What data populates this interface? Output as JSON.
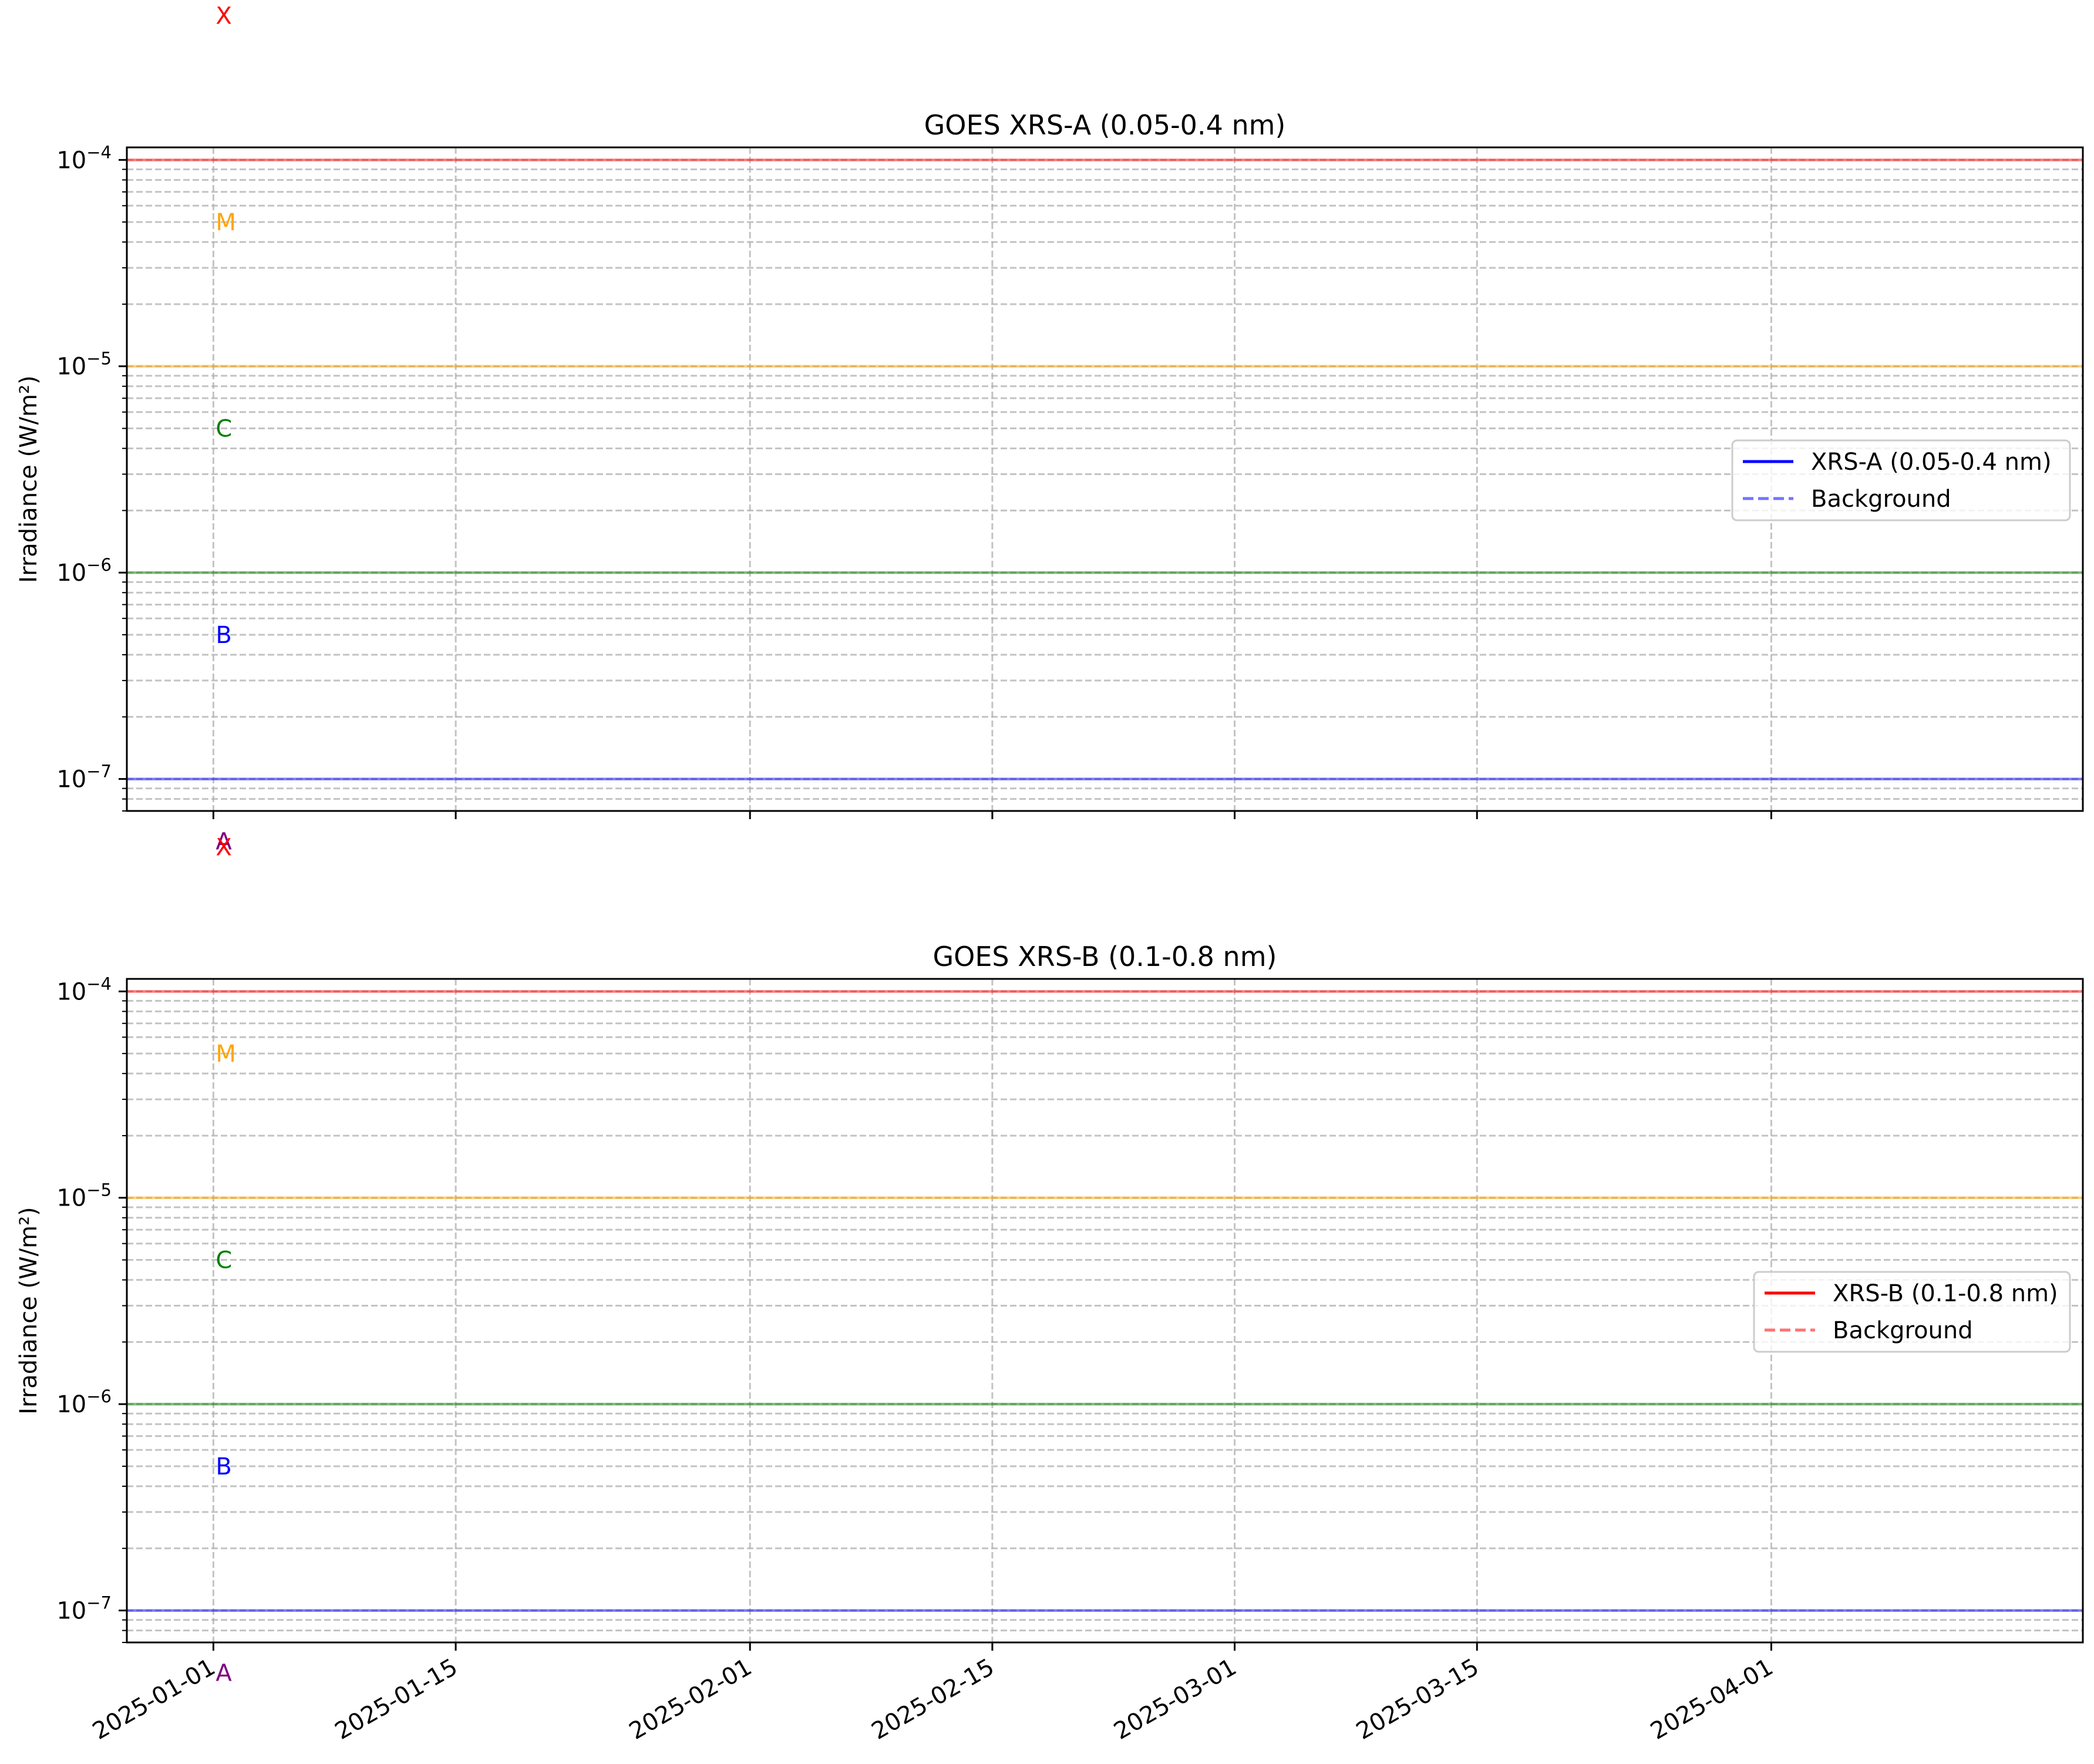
{
  "chart_data": [
    {
      "type": "line",
      "title": "GOES XRS-A (0.05-0.4 nm)",
      "xlabel": "",
      "ylabel": "Irradiance (W/m²)",
      "yscale": "log",
      "ylim": [
        7e-08,
        0.000115
      ],
      "xlim": [
        "2024-12-27",
        "2025-04-19"
      ],
      "grid": true,
      "legend_position": "center-right",
      "yticks": [
        {
          "value": 1e-07,
          "base": "10",
          "exp": "−7"
        },
        {
          "value": 1e-06,
          "base": "10",
          "exp": "−6"
        },
        {
          "value": 1e-05,
          "base": "10",
          "exp": "−5"
        },
        {
          "value": 0.0001,
          "base": "10",
          "exp": "−4"
        }
      ],
      "xticks": [
        "2025-01-01",
        "2025-01-15",
        "2025-02-01",
        "2025-02-15",
        "2025-03-01",
        "2025-03-15",
        "2025-04-01"
      ],
      "series": [
        {
          "name": "XRS-A (0.05-0.4 nm)",
          "color": "#0000ff",
          "style": "solid",
          "values": []
        },
        {
          "name": "Background",
          "color": "#7373ff",
          "style": "dashed",
          "values": []
        }
      ],
      "thresholds": [
        {
          "value": 1e-07,
          "color": "#0000ff"
        },
        {
          "value": 1e-06,
          "color": "#008000"
        },
        {
          "value": 1e-05,
          "color": "#ffa500"
        },
        {
          "value": 0.0001,
          "color": "#ff0000"
        }
      ],
      "class_labels": [
        {
          "text": "X",
          "value": 0.0005,
          "color": "#ff0000"
        },
        {
          "text": "M",
          "value": 5e-05,
          "color": "#ffa500"
        },
        {
          "text": "C",
          "value": 5e-06,
          "color": "#008000"
        },
        {
          "text": "B",
          "value": 5e-07,
          "color": "#0000ff"
        },
        {
          "text": "A",
          "value": 5e-08,
          "color": "#800080"
        }
      ]
    },
    {
      "type": "line",
      "title": "GOES XRS-B (0.1-0.8 nm)",
      "xlabel": "",
      "ylabel": "Irradiance (W/m²)",
      "yscale": "log",
      "ylim": [
        7e-08,
        0.000115
      ],
      "xlim": [
        "2024-12-27",
        "2025-04-19"
      ],
      "grid": true,
      "legend_position": "center-right",
      "yticks": [
        {
          "value": 1e-07,
          "base": "10",
          "exp": "−7"
        },
        {
          "value": 1e-06,
          "base": "10",
          "exp": "−6"
        },
        {
          "value": 1e-05,
          "base": "10",
          "exp": "−5"
        },
        {
          "value": 0.0001,
          "base": "10",
          "exp": "−4"
        }
      ],
      "xticks": [
        "2025-01-01",
        "2025-01-15",
        "2025-02-01",
        "2025-02-15",
        "2025-03-01",
        "2025-03-15",
        "2025-04-01"
      ],
      "series": [
        {
          "name": "XRS-B (0.1-0.8 nm)",
          "color": "#ff0000",
          "style": "solid",
          "values": []
        },
        {
          "name": "Background",
          "color": "#ff7373",
          "style": "dashed",
          "values": []
        }
      ],
      "thresholds": [
        {
          "value": 1e-07,
          "color": "#0000ff"
        },
        {
          "value": 1e-06,
          "color": "#008000"
        },
        {
          "value": 1e-05,
          "color": "#ffa500"
        },
        {
          "value": 0.0001,
          "color": "#ff0000"
        }
      ],
      "class_labels": [
        {
          "text": "X",
          "value": 0.0005,
          "color": "#ff0000"
        },
        {
          "text": "M",
          "value": 5e-05,
          "color": "#ffa500"
        },
        {
          "text": "C",
          "value": 5e-06,
          "color": "#008000"
        },
        {
          "text": "B",
          "value": 5e-07,
          "color": "#0000ff"
        },
        {
          "text": "A",
          "value": 5e-08,
          "color": "#800080"
        }
      ]
    }
  ]
}
